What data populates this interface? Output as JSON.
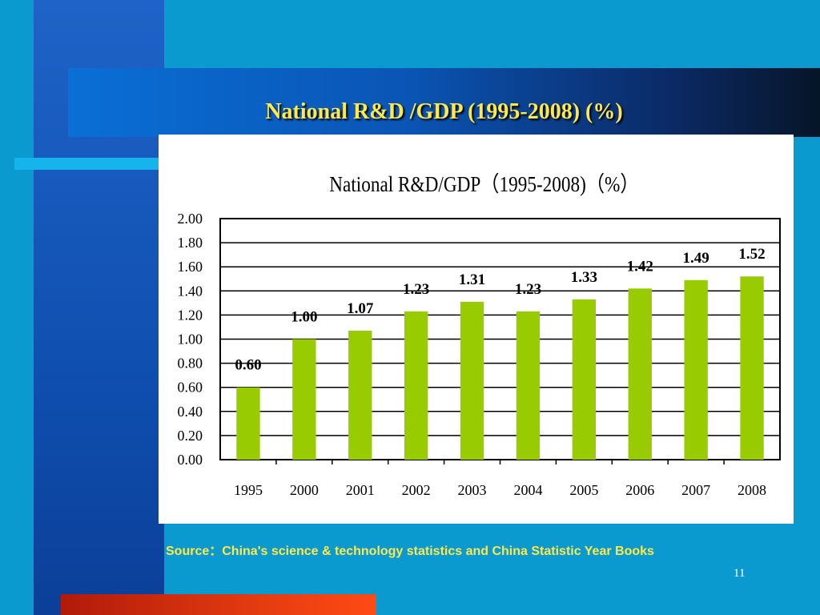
{
  "slide": {
    "title": "National R&D /GDP (1995-2008) (%)",
    "source": "Source：China's science & technology statistics and China Statistic Year Books",
    "page_number": "11"
  },
  "colors": {
    "background": "#0b9ad0",
    "title_text": "#ffe94a",
    "bar_fill": "#99cc00"
  },
  "chart_data": {
    "type": "bar",
    "title": "National R&D/GDP（1995-2008)（%）",
    "categories": [
      "1995",
      "2000",
      "2001",
      "2002",
      "2003",
      "2004",
      "2005",
      "2006",
      "2007",
      "2008"
    ],
    "values": [
      0.6,
      1.0,
      1.07,
      1.23,
      1.31,
      1.23,
      1.33,
      1.42,
      1.49,
      1.52
    ],
    "value_labels": [
      "0.60",
      "1.00",
      "1.07",
      "1.23",
      "1.31",
      "1.23",
      "1.33",
      "1.42",
      "1.49",
      "1.52"
    ],
    "yticks": [
      "0.00",
      "0.20",
      "0.40",
      "0.60",
      "0.80",
      "1.00",
      "1.20",
      "1.40",
      "1.60",
      "1.80",
      "2.00"
    ],
    "ylim": [
      0,
      2.0
    ],
    "xlabel": "",
    "ylabel": "",
    "grid": true,
    "legend": "none"
  }
}
